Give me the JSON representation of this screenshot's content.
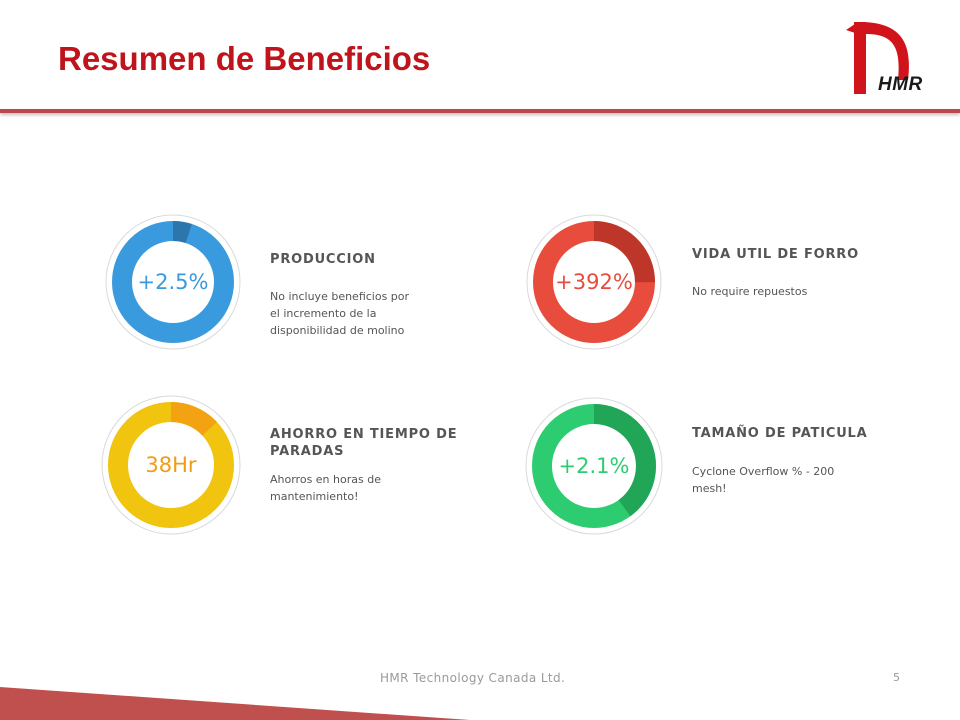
{
  "page": {
    "title": "Resumen de Beneficios"
  },
  "logo": {
    "text": "HMR",
    "color": "#d1141c"
  },
  "cards": [
    {
      "value": "+2.5%",
      "title": "PRODUCCION",
      "description": "No incluye beneficios por el incremento de la disponibilidad  de molino",
      "color": "#3a9ade",
      "accent": "#2a6fa5",
      "fill_fraction": 0.05
    },
    {
      "value": "+392%",
      "title": "VIDA UTIL DE FORRO",
      "description": "No require repuestos",
      "color": "#e84c3d",
      "accent": "#b53326",
      "fill_fraction": 0.25
    },
    {
      "value": "38Hr",
      "title": "AHORRO EN TIEMPO DE PARADAS",
      "description": "Ahorros en horas de mantenimiento!",
      "color": "#f1c40f",
      "accent": "#f39c12",
      "fill_fraction": 0.13
    },
    {
      "value": "+2.1%",
      "title": "TAMAÑO DE PATICULA",
      "description": "Cyclone Overflow % - 200 mesh!",
      "color": "#2ecc71",
      "accent": "#1f9e52",
      "fill_fraction": 0.4
    }
  ],
  "footer": {
    "company": "HMR Technology  Canada Ltd.",
    "page_number": "5"
  },
  "theme": {
    "title_color": "#c0141c",
    "rule_color": "#b84a4a"
  }
}
